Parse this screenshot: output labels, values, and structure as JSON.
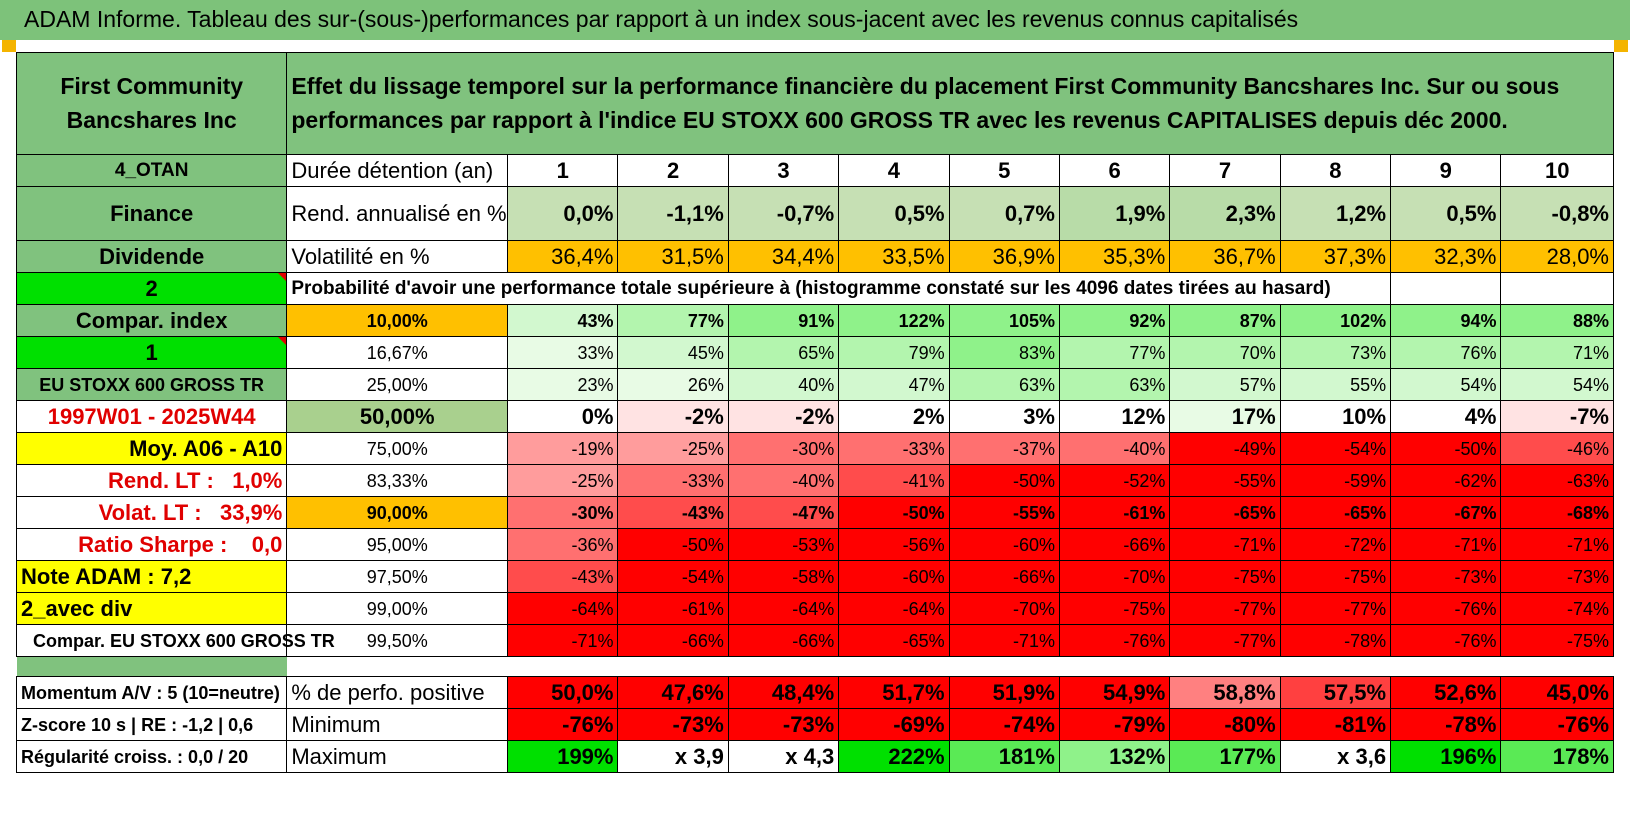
{
  "title": "ADAM Informe. Tableau des sur-(sous-)performances par rapport à un index sous-jacent avec les revenus connus capitalisés",
  "header": {
    "company": "First Community Bancshares Inc",
    "description": "Effet du lissage temporel sur la performance financière du placement First Community Bancshares Inc. Sur ou sous performances par rapport à l'indice EU STOXX 600 GROSS TR avec les revenus CAPITALISES depuis déc 2000."
  },
  "left": {
    "otan": "4_OTAN",
    "finance": "Finance",
    "dividende": "Dividende",
    "two": "2",
    "compar_index": "Compar. index",
    "one": "1",
    "index_name": "EU STOXX 600 GROSS TR",
    "period": "1997W01 - 2025W44",
    "moy": "Moy. A06 - A10",
    "rend_lt_label": "Rend. LT :",
    "rend_lt_value": "1,0%",
    "volat_lt_label": "Volat. LT :",
    "volat_lt_value": "33,9%",
    "sharpe_label": "Ratio Sharpe :",
    "sharpe_value": "0,0",
    "note_adam": "Note ADAM : 7,2",
    "avec_div": "2_avec div",
    "compar_eu": "Compar. EU STOXX 600 GROSS TR",
    "momentum": "Momentum A/V : 5 (10=neutre)",
    "zscore": "Z-score 10 s | RE : -1,2 | 0,6",
    "regularite": "Régularité croiss. : 0,0 / 20"
  },
  "labels": {
    "duree": "Durée détention (an)",
    "rend": "Rend. annualisé en %",
    "vol": "Volatilité en %",
    "prob": "Probabilité d'avoir une performance totale supérieure à (histogramme constaté sur les 4096 dates tirées au hasard)",
    "pct_pos": "% de perfo. positive",
    "minimum": "Minimum",
    "maximum": "Maximum"
  },
  "years": [
    "1",
    "2",
    "3",
    "4",
    "5",
    "6",
    "7",
    "8",
    "9",
    "10"
  ],
  "rend": [
    "0,0%",
    "-1,1%",
    "-0,7%",
    "0,5%",
    "0,7%",
    "1,9%",
    "2,3%",
    "1,2%",
    "0,5%",
    "-0,8%"
  ],
  "vol": [
    "36,4%",
    "31,5%",
    "34,4%",
    "33,5%",
    "36,9%",
    "35,3%",
    "36,7%",
    "37,3%",
    "32,3%",
    "28,0%"
  ],
  "prob_rows": [
    {
      "pct": "10,00%",
      "values": [
        "43%",
        "77%",
        "91%",
        "122%",
        "105%",
        "92%",
        "87%",
        "102%",
        "94%",
        "88%"
      ]
    },
    {
      "pct": "16,67%",
      "values": [
        "33%",
        "45%",
        "65%",
        "79%",
        "83%",
        "77%",
        "70%",
        "73%",
        "76%",
        "71%"
      ]
    },
    {
      "pct": "25,00%",
      "values": [
        "23%",
        "26%",
        "40%",
        "47%",
        "63%",
        "63%",
        "57%",
        "55%",
        "54%",
        "54%"
      ]
    },
    {
      "pct": "50,00%",
      "values": [
        "0%",
        "-2%",
        "-2%",
        "2%",
        "3%",
        "12%",
        "17%",
        "10%",
        "4%",
        "-7%"
      ]
    },
    {
      "pct": "75,00%",
      "values": [
        "-19%",
        "-25%",
        "-30%",
        "-33%",
        "-37%",
        "-40%",
        "-49%",
        "-54%",
        "-50%",
        "-46%"
      ]
    },
    {
      "pct": "83,33%",
      "values": [
        "-25%",
        "-33%",
        "-40%",
        "-41%",
        "-50%",
        "-52%",
        "-55%",
        "-59%",
        "-62%",
        "-63%"
      ]
    },
    {
      "pct": "90,00%",
      "values": [
        "-30%",
        "-43%",
        "-47%",
        "-50%",
        "-55%",
        "-61%",
        "-65%",
        "-65%",
        "-67%",
        "-68%"
      ]
    },
    {
      "pct": "95,00%",
      "values": [
        "-36%",
        "-50%",
        "-53%",
        "-56%",
        "-60%",
        "-66%",
        "-71%",
        "-72%",
        "-71%",
        "-71%"
      ]
    },
    {
      "pct": "97,50%",
      "values": [
        "-43%",
        "-54%",
        "-58%",
        "-60%",
        "-66%",
        "-70%",
        "-75%",
        "-75%",
        "-73%",
        "-73%"
      ]
    },
    {
      "pct": "99,00%",
      "values": [
        "-64%",
        "-61%",
        "-64%",
        "-64%",
        "-70%",
        "-75%",
        "-77%",
        "-77%",
        "-76%",
        "-74%"
      ]
    },
    {
      "pct": "99,50%",
      "values": [
        "-71%",
        "-66%",
        "-66%",
        "-65%",
        "-71%",
        "-76%",
        "-77%",
        "-78%",
        "-76%",
        "-75%"
      ]
    }
  ],
  "pct_pos": [
    "50,0%",
    "47,6%",
    "48,4%",
    "51,7%",
    "51,9%",
    "54,9%",
    "58,8%",
    "57,5%",
    "52,6%",
    "45,0%"
  ],
  "minimum": [
    "-76%",
    "-73%",
    "-73%",
    "-69%",
    "-74%",
    "-79%",
    "-80%",
    "-81%",
    "-78%",
    "-76%"
  ],
  "maximum": [
    "199%",
    "x 3,9",
    "x 4,3",
    "222%",
    "181%",
    "132%",
    "177%",
    "x 3,6",
    "196%",
    "178%"
  ],
  "colors": {
    "header_green": "#80c27e",
    "bright_green": "#00e000",
    "orange": "#ffc000",
    "yellow": "#ffff00",
    "label_red": "#e00000"
  }
}
